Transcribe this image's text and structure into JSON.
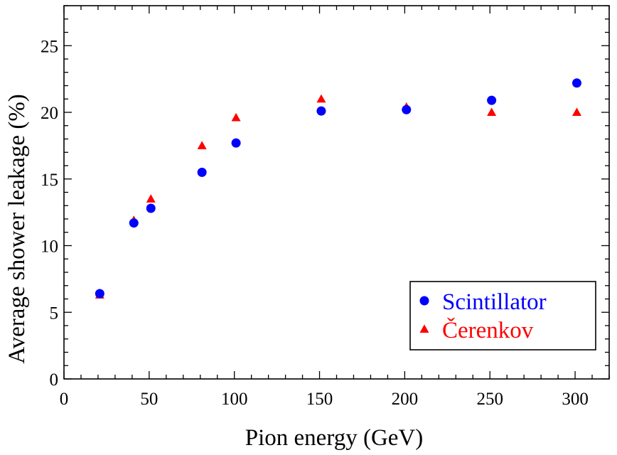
{
  "chart_data": {
    "type": "scatter",
    "title": "",
    "xlabel": "Pion energy (GeV)",
    "ylabel": "Average shower leakage (%)",
    "xlim": [
      0,
      320
    ],
    "ylim": [
      0,
      28
    ],
    "xticks": [
      0,
      50,
      100,
      150,
      200,
      250,
      300
    ],
    "yticks": [
      0,
      5,
      10,
      15,
      20,
      25
    ],
    "grid": false,
    "legend_position": "bottom-right",
    "series": [
      {
        "name": "Scintillator",
        "marker": "circle",
        "color": "#0000ff",
        "x": [
          20,
          40,
          50,
          80,
          100,
          150,
          200,
          250,
          300
        ],
        "y": [
          6.4,
          11.7,
          12.8,
          15.5,
          17.7,
          20.1,
          20.2,
          20.9,
          22.2
        ]
      },
      {
        "name": "Čerenkov",
        "marker": "triangle",
        "color": "#ff0000",
        "x": [
          20,
          40,
          50,
          80,
          100,
          150,
          200,
          250,
          300
        ],
        "y": [
          6.3,
          11.9,
          13.5,
          17.5,
          19.6,
          21.0,
          20.4,
          20.0,
          20.0
        ]
      }
    ]
  }
}
